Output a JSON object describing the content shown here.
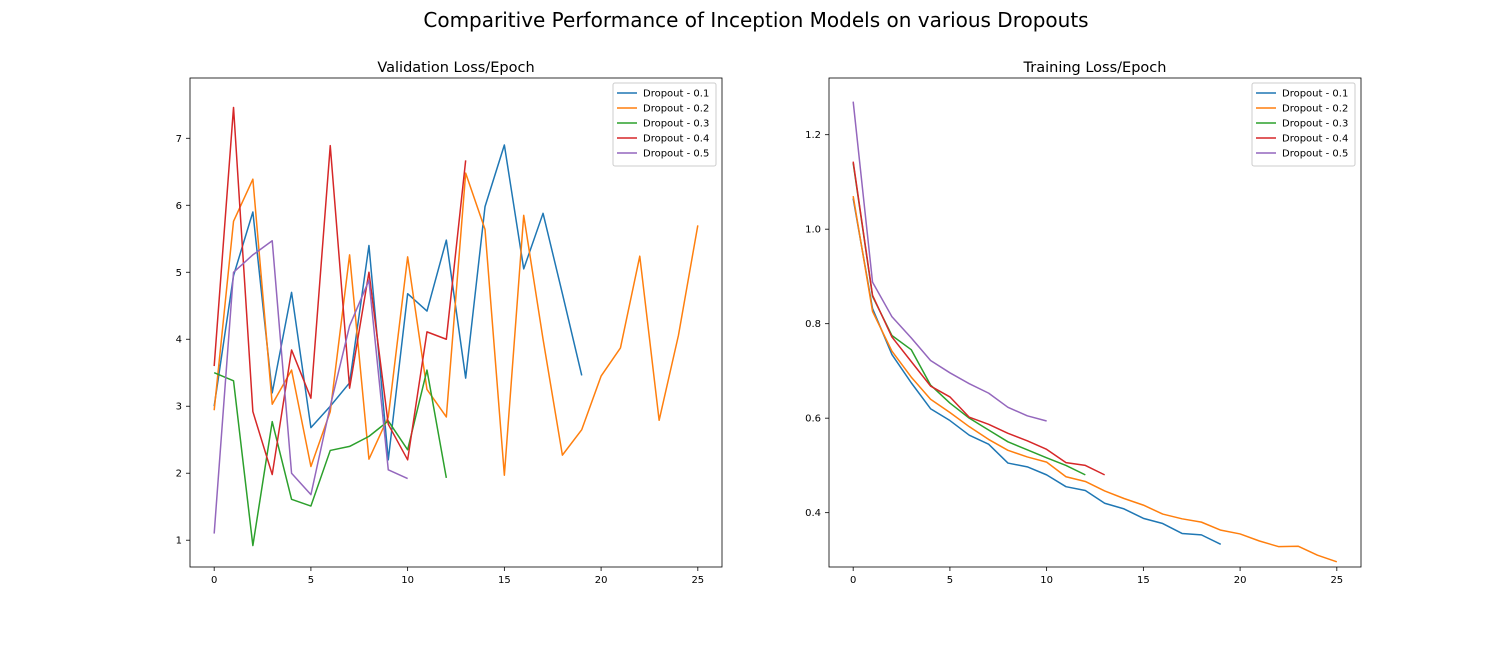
{
  "figure": {
    "title": "Comparitive Performance of Inception Models on various Dropouts"
  },
  "chart_data": [
    {
      "type": "line",
      "title": "Validation Loss/Epoch",
      "xlabel": "",
      "ylabel": "",
      "xlim": [
        -1.25,
        26.25
      ],
      "ylim": [
        0.6,
        7.9
      ],
      "xticks": [
        0,
        5,
        10,
        15,
        20,
        25
      ],
      "yticks": [
        1,
        2,
        3,
        4,
        5,
        6,
        7
      ],
      "legend": "top-right",
      "grid": false,
      "series": [
        {
          "name": "Dropout - 0.1",
          "color": "#1f77b4",
          "values": [
            3.0,
            4.95,
            5.9,
            3.2,
            4.7,
            2.68,
            3.0,
            3.35,
            5.4,
            2.2,
            4.68,
            4.42,
            5.48,
            3.42,
            5.98,
            6.9,
            5.05,
            5.88,
            4.68,
            3.46
          ]
        },
        {
          "name": "Dropout - 0.2",
          "color": "#ff7f0e",
          "values": [
            2.94,
            5.76,
            6.39,
            3.03,
            3.54,
            2.1,
            2.92,
            5.26,
            2.21,
            2.84,
            5.23,
            3.25,
            2.84,
            6.48,
            5.64,
            1.97,
            5.85,
            4.0,
            2.27,
            2.65,
            3.45,
            3.87,
            5.24,
            2.79,
            4.06,
            5.7
          ]
        },
        {
          "name": "Dropout - 0.3",
          "color": "#2ca02c",
          "values": [
            3.5,
            3.38,
            0.92,
            2.77,
            1.61,
            1.51,
            2.34,
            2.4,
            2.55,
            2.78,
            2.35,
            3.54,
            1.93
          ]
        },
        {
          "name": "Dropout - 0.4",
          "color": "#d62728",
          "values": [
            3.6,
            7.46,
            2.92,
            1.98,
            3.84,
            3.12,
            6.89,
            3.27,
            5.0,
            2.73,
            2.2,
            4.11,
            4.0,
            6.67
          ]
        },
        {
          "name": "Dropout - 0.5",
          "color": "#9467bd",
          "values": [
            1.1,
            5.0,
            5.26,
            5.47,
            2.0,
            1.68,
            3.0,
            4.2,
            4.88,
            2.05,
            1.92
          ]
        }
      ]
    },
    {
      "type": "line",
      "title": "Training Loss/Epoch",
      "xlabel": "",
      "ylabel": "",
      "xlim": [
        -1.25,
        26.25
      ],
      "ylim": [
        0.285,
        1.32
      ],
      "xticks": [
        0,
        5,
        10,
        15,
        20,
        25
      ],
      "yticks": [
        0.4,
        0.6,
        0.8,
        1.0,
        1.2
      ],
      "ytick_labels": [
        "0.4",
        "0.6",
        "0.8",
        "1.0",
        "1.2"
      ],
      "legend": "top-right",
      "grid": false,
      "series": [
        {
          "name": "Dropout - 0.1",
          "color": "#1f77b4",
          "values": [
            1.065,
            0.832,
            0.735,
            0.675,
            0.62,
            0.595,
            0.564,
            0.545,
            0.505,
            0.497,
            0.48,
            0.455,
            0.447,
            0.42,
            0.408,
            0.388,
            0.377,
            0.356,
            0.353,
            0.333
          ]
        },
        {
          "name": "Dropout - 0.2",
          "color": "#ff7f0e",
          "values": [
            1.07,
            0.826,
            0.742,
            0.687,
            0.64,
            0.612,
            0.582,
            0.555,
            0.532,
            0.518,
            0.507,
            0.476,
            0.466,
            0.446,
            0.43,
            0.416,
            0.397,
            0.387,
            0.38,
            0.363,
            0.355,
            0.34,
            0.328,
            0.329,
            0.31,
            0.296
          ]
        },
        {
          "name": "Dropout - 0.3",
          "color": "#2ca02c",
          "values": [
            1.14,
            0.858,
            0.775,
            0.745,
            0.67,
            0.632,
            0.6,
            0.575,
            0.55,
            0.533,
            0.516,
            0.5,
            0.48
          ]
        },
        {
          "name": "Dropout - 0.4",
          "color": "#d62728",
          "values": [
            1.143,
            0.86,
            0.772,
            0.72,
            0.668,
            0.645,
            0.602,
            0.587,
            0.568,
            0.552,
            0.534,
            0.506,
            0.5,
            0.48
          ]
        },
        {
          "name": "Dropout - 0.5",
          "color": "#9467bd",
          "values": [
            1.27,
            0.888,
            0.815,
            0.77,
            0.722,
            0.696,
            0.673,
            0.653,
            0.623,
            0.605,
            0.594
          ]
        }
      ]
    }
  ]
}
